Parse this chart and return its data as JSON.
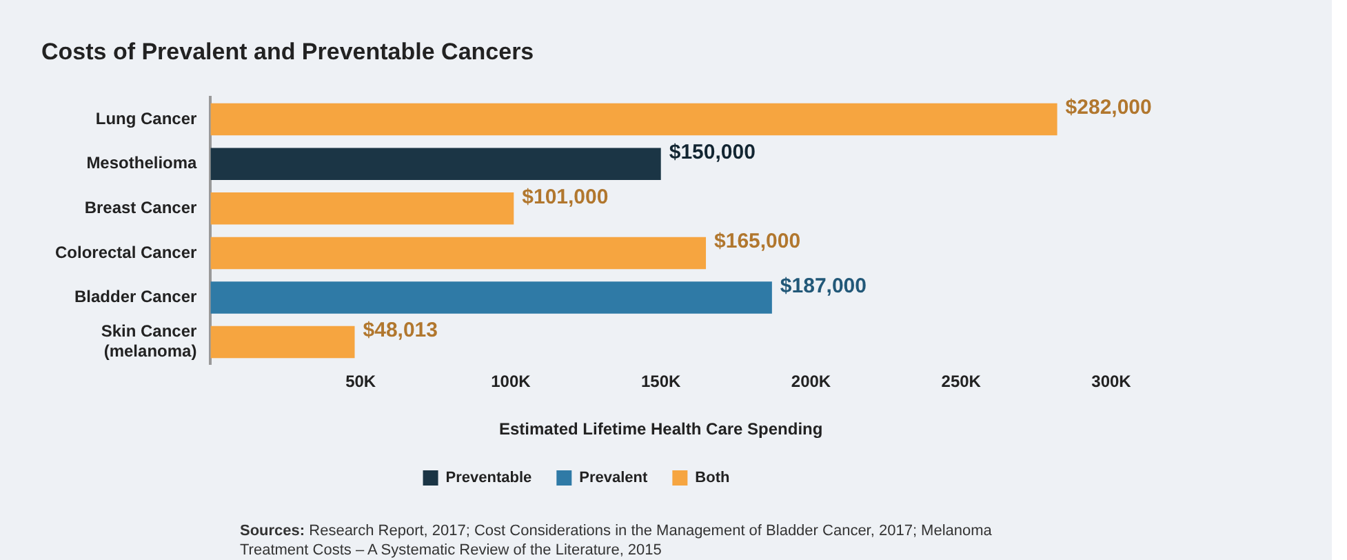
{
  "chart_data": {
    "type": "bar",
    "orientation": "horizontal",
    "title": "Costs of Prevalent and Preventable Cancers",
    "xlabel": "Estimated Lifetime Health Care Spending",
    "categories": [
      "Lung Cancer",
      "Mesothelioma",
      "Breast Cancer",
      "Colorectal Cancer",
      "Bladder Cancer",
      "Skin Cancer\n(melanoma)"
    ],
    "series": [
      {
        "name": "Preventable",
        "color": "#1b3545",
        "values": [
          null,
          150000,
          null,
          null,
          null,
          null
        ],
        "value_labels": [
          null,
          "$150,000",
          null,
          null,
          null,
          null
        ]
      },
      {
        "name": "Prevalent",
        "color": "#2f7aa6",
        "values": [
          null,
          null,
          null,
          null,
          187000,
          null
        ],
        "value_labels": [
          null,
          null,
          null,
          null,
          "$187,000",
          null
        ]
      },
      {
        "name": "Both",
        "color": "#f6a540",
        "values": [
          282000,
          null,
          101000,
          165000,
          null,
          48013
        ],
        "value_labels": [
          "$282,000",
          null,
          "$101,000",
          "$165,000",
          null,
          "$48,013"
        ]
      }
    ],
    "xlim": [
      0,
      300000
    ],
    "xticks": [
      {
        "value": 0,
        "label": null
      },
      {
        "value": 50000,
        "label": "50K"
      },
      {
        "value": 100000,
        "label": "100K"
      },
      {
        "value": 150000,
        "label": "150K"
      },
      {
        "value": 200000,
        "label": "200K"
      },
      {
        "value": 250000,
        "label": "250K"
      },
      {
        "value": 300000,
        "label": "300K"
      }
    ],
    "grid": false,
    "legend": "bottom",
    "annotations": [
      "Sources: Research Report, 2017; Cost Considerations in the Management of Bladder Cancer, 2017; Melanoma Treatment Costs – A Systematic Review of the Literature, 2015"
    ]
  }
}
